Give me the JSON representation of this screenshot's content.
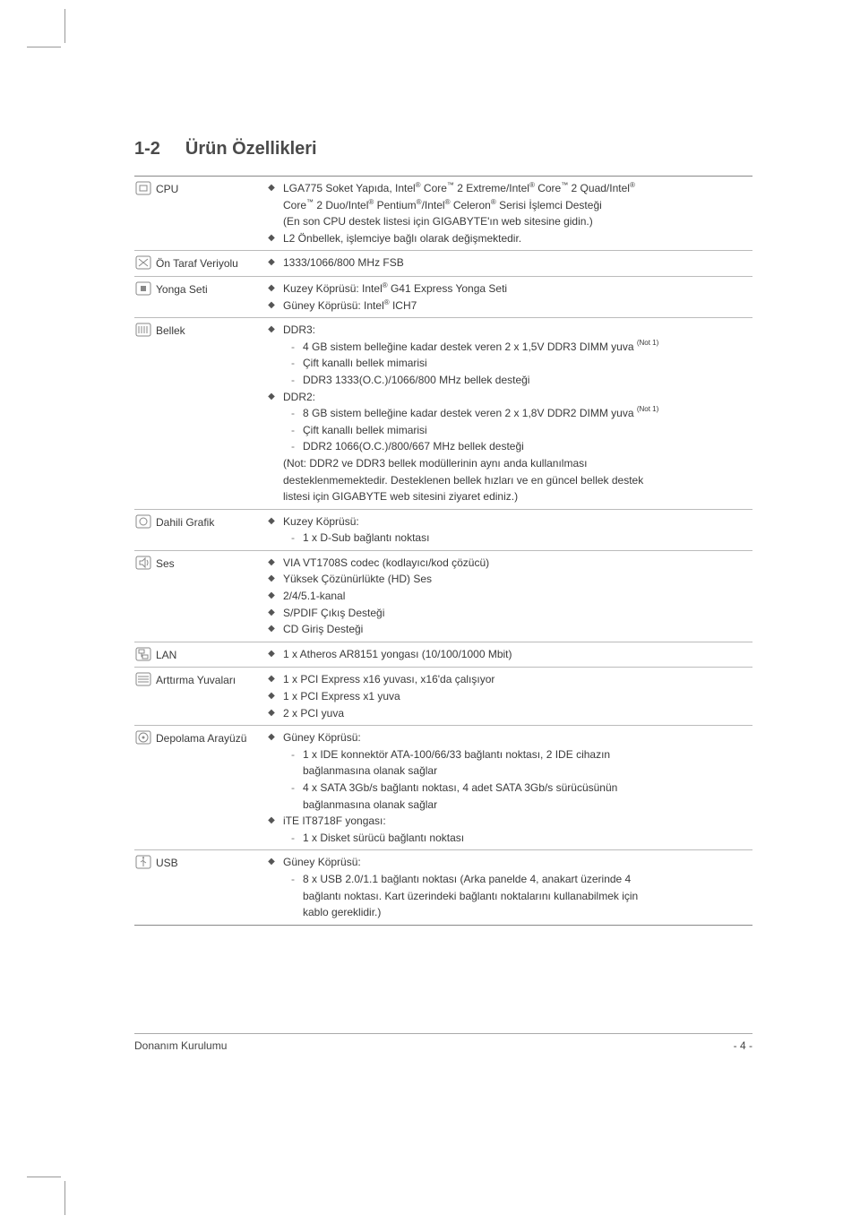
{
  "heading": {
    "num": "1-2",
    "title": "Ürün Özellikleri"
  },
  "footer": {
    "left": "Donanım Kurulumu",
    "right": "- 4 -"
  },
  "icon_stroke": "#888",
  "rows": [
    {
      "icon": "cpu",
      "label": "CPU",
      "lines": [
        {
          "t": "b",
          "html": "LGA775 Soket Yapıda, Intel<sup class='reg'>®</sup> Core<span class='tm'>™</span> 2 Extreme/Intel<sup class='reg'>®</sup> Core<span class='tm'>™</span> 2 Quad/Intel<sup class='reg'>®</sup>"
        },
        {
          "t": "p",
          "html": "Core<span class='tm'>™</span> 2 Duo/Intel<sup class='reg'>®</sup> Pentium<sup class='reg'>®</sup>/Intel<sup class='reg'>®</sup> Celeron<sup class='reg'>®</sup> Serisi İşlemci Desteği"
        },
        {
          "t": "p",
          "html": "(En son CPU destek listesi için GIGABYTE'ın web sitesine gidin.)"
        },
        {
          "t": "b",
          "html": "L2 Önbellek, işlemciye bağlı olarak değişmektedir."
        }
      ]
    },
    {
      "icon": "fsb",
      "label": "Ön Taraf Veriyolu",
      "lines": [
        {
          "t": "b",
          "html": "1333/1066/800 MHz FSB"
        }
      ]
    },
    {
      "icon": "chipset",
      "label": "Yonga Seti",
      "lines": [
        {
          "t": "b",
          "html": "Kuzey Köprüsü: Intel<sup class='reg'>®</sup> G41 Express Yonga Seti"
        },
        {
          "t": "b",
          "html": "Güney Köprüsü: Intel<sup class='reg'>®</sup> ICH7"
        }
      ]
    },
    {
      "icon": "memory",
      "label": "Bellek",
      "lines": [
        {
          "t": "b",
          "html": "DDR3:"
        },
        {
          "t": "s",
          "html": "4 GB sistem belleğine kadar destek veren 2 x 1,5V DDR3 DIMM yuva <sup class='note'>(Not 1)</sup>"
        },
        {
          "t": "s",
          "html": "Çift kanallı bellek mimarisi"
        },
        {
          "t": "s",
          "html": "DDR3 1333(O.C.)/1066/800 MHz bellek desteği"
        },
        {
          "t": "b",
          "html": "DDR2:"
        },
        {
          "t": "s",
          "html": "8 GB sistem belleğine kadar destek veren 2 x 1,8V DDR2 DIMM yuva <sup class='note'>(Not 1)</sup>"
        },
        {
          "t": "s",
          "html": "Çift kanallı bellek mimarisi"
        },
        {
          "t": "s",
          "html": "DDR2 1066(O.C.)/800/667 MHz bellek desteği"
        },
        {
          "t": "p",
          "html": "(Not: DDR2 ve DDR3 bellek modüllerinin aynı anda kullanılması"
        },
        {
          "t": "p",
          "html": "desteklenmemektedir. Desteklenen bellek hızları ve en güncel bellek destek"
        },
        {
          "t": "p",
          "html": "listesi için GIGABYTE web sitesini ziyaret ediniz.)"
        }
      ]
    },
    {
      "icon": "gfx",
      "label": "Dahili Grafik",
      "lines": [
        {
          "t": "b",
          "html": "Kuzey Köprüsü:"
        },
        {
          "t": "s",
          "html": "1 x D-Sub bağlantı noktası"
        }
      ]
    },
    {
      "icon": "audio",
      "label": "Ses",
      "lines": [
        {
          "t": "b",
          "html": "VIA VT1708S codec (kodlayıcı/kod çözücü)"
        },
        {
          "t": "b",
          "html": "Yüksek Çözünürlükte (HD) Ses"
        },
        {
          "t": "b",
          "html": "2/4/5.1-kanal"
        },
        {
          "t": "b",
          "html": "S/PDIF Çıkış Desteği"
        },
        {
          "t": "b",
          "html": "CD Giriş Desteği"
        }
      ]
    },
    {
      "icon": "lan",
      "label": "LAN",
      "lines": [
        {
          "t": "b",
          "html": "1 x Atheros AR8151 yongası (10/100/1000 Mbit)"
        }
      ]
    },
    {
      "icon": "slot",
      "label": "Arttırma Yuvaları",
      "lines": [
        {
          "t": "b",
          "html": "1 x PCI Express x16 yuvası, x16'da çalışıyor"
        },
        {
          "t": "b",
          "html": "1 x PCI Express x1 yuva"
        },
        {
          "t": "b",
          "html": "2 x PCI yuva"
        }
      ]
    },
    {
      "icon": "storage",
      "label": "Depolama Arayüzü",
      "lines": [
        {
          "t": "b",
          "html": "Güney Köprüsü:"
        },
        {
          "t": "s",
          "html": "1 x IDE konnektör ATA-100/66/33 bağlantı noktası, 2 IDE cihazın"
        },
        {
          "t": "sc",
          "html": "bağlanmasına olanak sağlar"
        },
        {
          "t": "s",
          "html": "4 x SATA 3Gb/s bağlantı noktası, 4 adet SATA 3Gb/s sürücüsünün"
        },
        {
          "t": "sc",
          "html": "bağlanmasına olanak sağlar"
        },
        {
          "t": "b",
          "html": "iTE IT8718F yongası:"
        },
        {
          "t": "s",
          "html": "1 x Disket sürücü bağlantı noktası"
        }
      ]
    },
    {
      "icon": "usb",
      "label": "USB",
      "lines": [
        {
          "t": "b",
          "html": "Güney Köprüsü:"
        },
        {
          "t": "s",
          "html": "8 x USB 2.0/1.1 bağlantı noktası (Arka panelde 4, anakart üzerinde 4"
        },
        {
          "t": "sc",
          "html": "bağlantı noktası. Kart üzerindeki bağlantı noktalarını kullanabilmek için"
        },
        {
          "t": "sc",
          "html": "kablo gereklidir.)"
        }
      ]
    }
  ],
  "icons": {
    "cpu": "<rect x='1' y='1' width='16' height='14' rx='2' fill='none' stroke='#888'/><rect x='5' y='5' width='8' height='6' fill='none' stroke='#888'/>",
    "fsb": "<rect x='1' y='1' width='16' height='14' rx='2' fill='none' stroke='#888'/><path d='M4 4 L14 12 M4 12 L14 4' stroke='#888'/>",
    "chipset": "<rect x='1' y='1' width='16' height='14' rx='2' fill='none' stroke='#888'/><rect x='6' y='5' width='6' height='6' fill='#888'/>",
    "memory": "<rect x='1' y='1' width='16' height='14' rx='2' fill='none' stroke='#888'/><line x1='4' y1='4' x2='4' y2='12' stroke='#888'/><line x1='7' y1='4' x2='7' y2='12' stroke='#888'/><line x1='10' y1='4' x2='10' y2='12' stroke='#888'/><line x1='13' y1='4' x2='13' y2='12' stroke='#888'/>",
    "gfx": "<rect x='1' y='1' width='16' height='14' rx='2' fill='none' stroke='#888'/><circle cx='9' cy='8' r='4' fill='none' stroke='#888'/>",
    "audio": "<rect x='1' y='1' width='16' height='14' rx='2' fill='none' stroke='#888'/><path d='M5 6 L8 6 L11 3 L11 13 L8 10 L5 10 Z' fill='none' stroke='#888'/><path d='M13 5 Q15 8 13 11' fill='none' stroke='#888'/>",
    "lan": "<rect x='1' y='1' width='16' height='14' rx='2' fill='none' stroke='#888'/><rect x='4' y='3' width='6' height='4' fill='none' stroke='#888'/><rect x='8' y='9' width='6' height='4' fill='none' stroke='#888'/><line x1='7' y1='7' x2='7' y2='11' stroke='#888'/><line x1='7' y1='11' x2='8' y2='11' stroke='#888'/>",
    "slot": "<rect x='1' y='1' width='16' height='14' rx='2' fill='none' stroke='#888'/><line x1='3' y1='5' x2='15' y2='5' stroke='#888'/><line x1='3' y1='8' x2='15' y2='8' stroke='#888'/><line x1='3' y1='11' x2='15' y2='11' stroke='#888'/>",
    "storage": "<rect x='1' y='1' width='16' height='14' rx='2' fill='none' stroke='#888'/><circle cx='9' cy='8' r='5' fill='none' stroke='#888'/><circle cx='9' cy='8' r='1.5' fill='#888'/>",
    "usb": "<rect x='1' y='1' width='16' height='14' rx='2' fill='none' stroke='#888'/><path d='M9 3 L9 13 M9 6 L6 8 M9 7 L12 9' stroke='#888' fill='none'/><circle cx='9' cy='3' r='1' fill='#888'/>"
  }
}
